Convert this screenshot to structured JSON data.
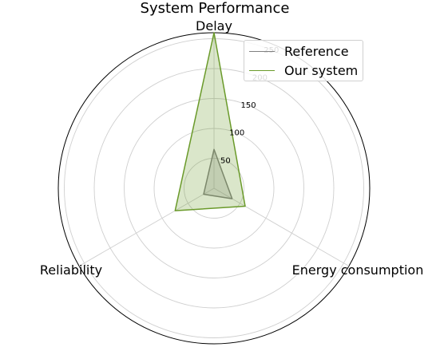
{
  "chart_data": {
    "type": "radar",
    "title": "System Performance",
    "axes": [
      "Delay",
      "Energy consumption",
      "Reliability"
    ],
    "radial_ticks": [
      50,
      100,
      150,
      200,
      250
    ],
    "rlim": [
      0,
      260
    ],
    "grid": true,
    "legend_placement": "top-right",
    "series": [
      {
        "name": "Reference",
        "values": [
          65,
          35,
          20
        ],
        "color": "#808080"
      },
      {
        "name": "Our system",
        "values": [
          260,
          60,
          75
        ],
        "color": "#6a9a2a"
      }
    ]
  }
}
